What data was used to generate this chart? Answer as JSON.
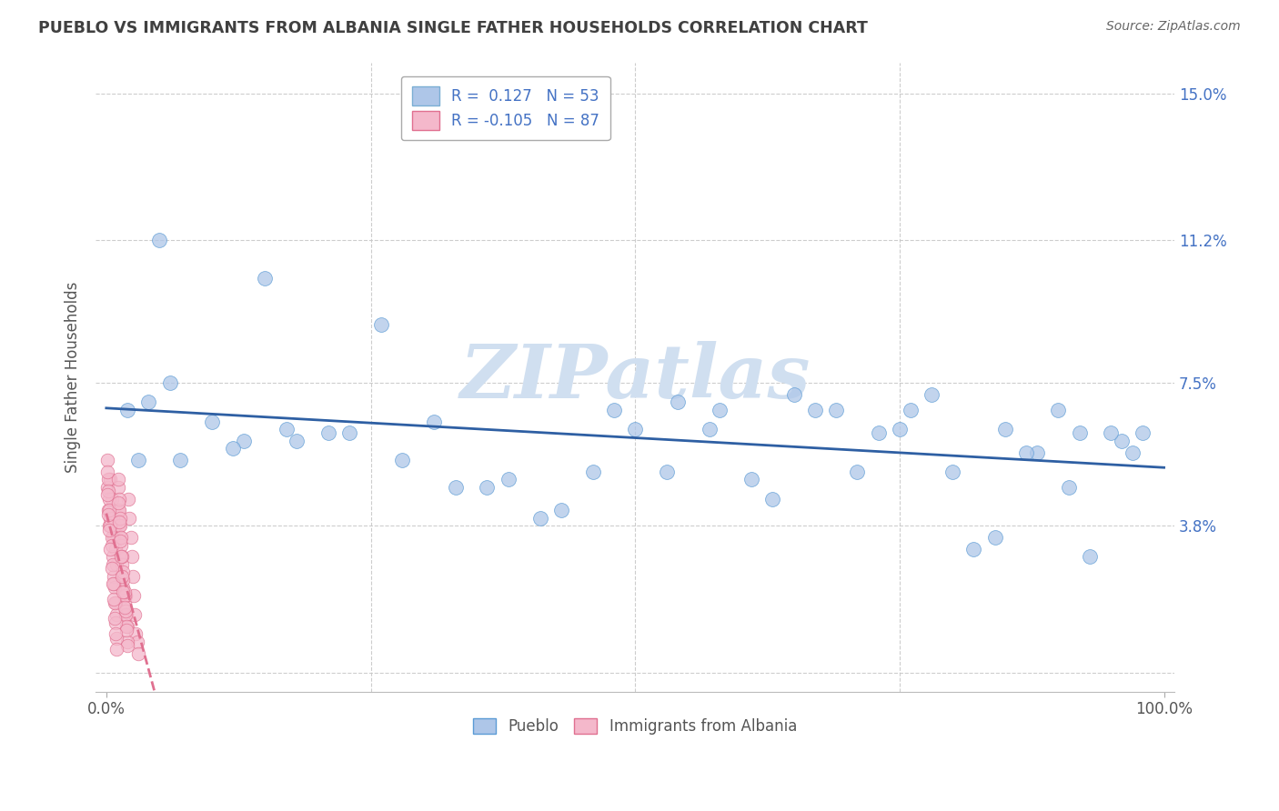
{
  "title": "PUEBLO VS IMMIGRANTS FROM ALBANIA SINGLE FATHER HOUSEHOLDS CORRELATION CHART",
  "source": "Source: ZipAtlas.com",
  "ylabel": "Single Father Households",
  "legend_entries": [
    {
      "label": "R =  0.127   N = 53",
      "facecolor": "#aec6e8",
      "edgecolor": "#7bafd4"
    },
    {
      "label": "R = -0.105   N = 87",
      "facecolor": "#f4b8cb",
      "edgecolor": "#e07090"
    }
  ],
  "pueblo_color": "#aec6e8",
  "pueblo_edge": "#5b9bd5",
  "albania_color": "#f4b8cb",
  "albania_edge": "#e07090",
  "pueblo_trend_color": "#2e5fa3",
  "albania_trend_color": "#e07090",
  "bg_color": "#ffffff",
  "grid_color": "#c8c8c8",
  "title_color": "#404040",
  "ylabel_color": "#555555",
  "tick_label_color": "#4472c4",
  "watermark_text": "ZIPatlas",
  "watermark_color": "#d0dff0",
  "ytick_positions": [
    0.0,
    0.038,
    0.075,
    0.112,
    0.15
  ],
  "ytick_labels": [
    "",
    "3.8%",
    "7.5%",
    "11.2%",
    "15.0%"
  ],
  "pueblo_x": [
    0.02,
    0.04,
    0.06,
    0.1,
    0.13,
    0.17,
    0.21,
    0.26,
    0.31,
    0.36,
    0.41,
    0.46,
    0.5,
    0.54,
    0.58,
    0.63,
    0.67,
    0.71,
    0.75,
    0.78,
    0.82,
    0.85,
    0.88,
    0.91,
    0.93,
    0.96,
    0.98,
    0.03,
    0.07,
    0.12,
    0.18,
    0.23,
    0.28,
    0.33,
    0.38,
    0.43,
    0.48,
    0.53,
    0.57,
    0.61,
    0.65,
    0.69,
    0.73,
    0.76,
    0.8,
    0.84,
    0.87,
    0.9,
    0.92,
    0.95,
    0.97,
    0.05,
    0.15
  ],
  "pueblo_y": [
    0.068,
    0.07,
    0.075,
    0.065,
    0.06,
    0.063,
    0.062,
    0.09,
    0.065,
    0.048,
    0.04,
    0.052,
    0.063,
    0.07,
    0.068,
    0.045,
    0.068,
    0.052,
    0.063,
    0.072,
    0.032,
    0.063,
    0.057,
    0.048,
    0.03,
    0.06,
    0.062,
    0.055,
    0.055,
    0.058,
    0.06,
    0.062,
    0.055,
    0.048,
    0.05,
    0.042,
    0.068,
    0.052,
    0.063,
    0.05,
    0.072,
    0.068,
    0.062,
    0.068,
    0.052,
    0.035,
    0.057,
    0.068,
    0.062,
    0.062,
    0.057,
    0.112,
    0.102
  ],
  "albania_x": [
    0.001,
    0.002,
    0.003,
    0.004,
    0.005,
    0.006,
    0.007,
    0.008,
    0.009,
    0.01,
    0.011,
    0.012,
    0.013,
    0.014,
    0.015,
    0.016,
    0.017,
    0.018,
    0.019,
    0.02,
    0.021,
    0.022,
    0.023,
    0.024,
    0.025,
    0.026,
    0.027,
    0.028,
    0.029,
    0.03,
    0.001,
    0.002,
    0.003,
    0.004,
    0.005,
    0.006,
    0.007,
    0.008,
    0.009,
    0.01,
    0.011,
    0.012,
    0.013,
    0.014,
    0.015,
    0.016,
    0.017,
    0.018,
    0.019,
    0.02,
    0.001,
    0.002,
    0.003,
    0.004,
    0.005,
    0.006,
    0.007,
    0.008,
    0.009,
    0.01,
    0.011,
    0.012,
    0.013,
    0.014,
    0.015,
    0.016,
    0.017,
    0.018,
    0.019,
    0.02,
    0.001,
    0.002,
    0.003,
    0.004,
    0.005,
    0.006,
    0.007,
    0.008,
    0.009,
    0.01,
    0.011,
    0.012,
    0.013,
    0.014,
    0.015,
    0.016,
    0.017
  ],
  "albania_y": [
    0.048,
    0.042,
    0.038,
    0.05,
    0.045,
    0.04,
    0.035,
    0.038,
    0.032,
    0.028,
    0.042,
    0.038,
    0.035,
    0.03,
    0.025,
    0.022,
    0.018,
    0.02,
    0.015,
    0.012,
    0.045,
    0.04,
    0.035,
    0.03,
    0.025,
    0.02,
    0.015,
    0.01,
    0.008,
    0.005,
    0.055,
    0.05,
    0.045,
    0.04,
    0.035,
    0.03,
    0.025,
    0.022,
    0.018,
    0.015,
    0.048,
    0.042,
    0.038,
    0.033,
    0.028,
    0.024,
    0.02,
    0.015,
    0.012,
    0.008,
    0.052,
    0.047,
    0.042,
    0.038,
    0.033,
    0.028,
    0.023,
    0.018,
    0.013,
    0.009,
    0.05,
    0.045,
    0.04,
    0.035,
    0.03,
    0.026,
    0.021,
    0.016,
    0.011,
    0.007,
    0.046,
    0.041,
    0.037,
    0.032,
    0.027,
    0.023,
    0.019,
    0.014,
    0.01,
    0.006,
    0.044,
    0.039,
    0.034,
    0.03,
    0.025,
    0.021,
    0.017
  ]
}
